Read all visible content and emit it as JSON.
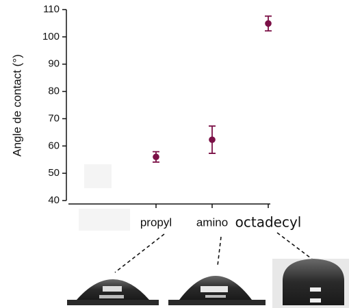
{
  "chart_data": {
    "type": "scatter",
    "y_label": "Angle de contact (°)",
    "categories": [
      null,
      "propyl",
      "amino",
      "octadecyl"
    ],
    "values": [
      null,
      56,
      62.3,
      104.9
    ],
    "errors": [
      null,
      1.9,
      5,
      2.7
    ],
    "color": "#7b1046",
    "ylim": [
      40,
      110
    ],
    "yticks": [
      40,
      50,
      60,
      70,
      80,
      90,
      100,
      110
    ]
  }
}
